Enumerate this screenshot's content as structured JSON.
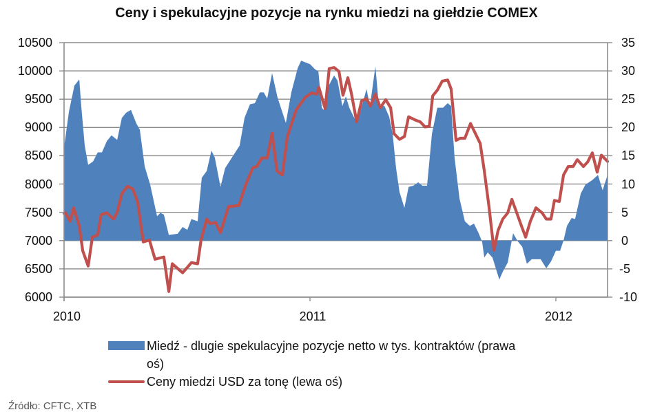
{
  "title": "Ceny i spekulacyjne pozycje na rynku miedzi na giełdzie COMEX",
  "source": "Źródło: CFTC, XTB",
  "legend": [
    {
      "label": "Miedź - dlugie spekulacyjne pozycje netto w tys. kontraktów (prawa oś)",
      "color": "#4F81BD",
      "symbol": "area-swatch"
    },
    {
      "label": "Ceny miedzi USD za tonę (lewa oś)",
      "color": "#C0504D",
      "symbol": "line-swatch"
    }
  ],
  "colors": {
    "area": "#4F81BD",
    "line": "#C0504D",
    "grid": "#8C8C8C",
    "axis": "#8C8C8C"
  },
  "chart_data": {
    "type": "line",
    "title": "Ceny i spekulacyjne pozycje na rynku miedzi na giełdzie COMEX",
    "xlabel": "",
    "ylabel_left": "",
    "ylabel_right": "",
    "x_ticks": [
      "2010",
      "2011",
      "2012"
    ],
    "x_tick_values": [
      2010,
      2011,
      2012
    ],
    "xlim": [
      2010,
      2012.21
    ],
    "y_left": {
      "lim": [
        6000,
        10500
      ],
      "ticks": [
        10500,
        10000,
        9500,
        9000,
        8500,
        8000,
        7500,
        7000,
        6500,
        6000
      ]
    },
    "y_right": {
      "lim": [
        -10,
        35
      ],
      "ticks": [
        35,
        30,
        25,
        20,
        15,
        10,
        5,
        0,
        -5,
        -10
      ]
    },
    "grid": true,
    "legend_position": "bottom",
    "series": [
      {
        "name": "Miedź - dlugie spekulacyjne pozycje netto w tys. kontraktów (prawa oś)",
        "type": "area",
        "axis": "right",
        "color": "#4F81BD",
        "x": [
          2010.0,
          2010.02,
          2010.042,
          2010.062,
          2010.07,
          2010.084,
          2010.098,
          2010.118,
          2010.137,
          2010.154,
          2010.174,
          2010.193,
          2010.216,
          2010.235,
          2010.252,
          2010.272,
          2010.294,
          2010.308,
          2010.328,
          2010.35,
          2010.378,
          2010.392,
          2010.406,
          2010.426,
          2010.462,
          2010.482,
          2010.501,
          2010.518,
          2010.543,
          2010.56,
          2010.58,
          2010.599,
          2010.613,
          2010.636,
          2010.655,
          2010.683,
          2010.714,
          2010.734,
          2010.756,
          2010.776,
          2010.796,
          2010.812,
          2010.826,
          2010.846,
          2010.868,
          2010.902,
          2010.924,
          2010.95,
          2010.964,
          2011.0,
          2011.02,
          2011.034,
          2011.048,
          2011.056,
          2011.07,
          2011.098,
          2011.112,
          2011.132,
          2011.146,
          2011.16,
          2011.188,
          2011.204,
          2011.23,
          2011.244,
          2011.266,
          2011.28,
          2011.303,
          2011.322,
          2011.336,
          2011.35,
          2011.364,
          2011.384,
          2011.401,
          2011.42,
          2011.44,
          2011.457,
          2011.476,
          2011.496,
          2011.518,
          2011.541,
          2011.56,
          2011.574,
          2011.588,
          2011.608,
          2011.63,
          2011.65,
          2011.667,
          2011.686,
          2011.7,
          2011.709,
          2011.723,
          2011.742,
          2011.77,
          2011.784,
          2011.804,
          2011.826,
          2011.846,
          2011.863,
          2011.882,
          2011.902,
          2011.938,
          2011.961,
          2011.98,
          2012.0,
          2012.017,
          2012.031,
          2012.045,
          2012.064,
          2012.078,
          2012.101,
          2012.12,
          2012.148,
          2012.171,
          2012.19,
          2012.21
        ],
        "values": [
          16.5,
          22.8,
          27.4,
          28.5,
          23.7,
          16.8,
          13.4,
          14.0,
          15.6,
          15.6,
          17.6,
          18.6,
          17.8,
          21.7,
          22.6,
          23.1,
          20.7,
          19.6,
          13.1,
          9.9,
          4.3,
          4.9,
          4.6,
          1.0,
          1.2,
          2.4,
          1.9,
          3.8,
          3.4,
          11.1,
          12.3,
          15.9,
          14.7,
          9.5,
          12.8,
          14.7,
          16.8,
          21.7,
          24.1,
          24.3,
          26.2,
          26.2,
          25.1,
          29.6,
          25.3,
          20.8,
          26.2,
          30.5,
          31.8,
          31.2,
          30.3,
          29.9,
          23.5,
          23.1,
          26.9,
          29.2,
          28.3,
          23.8,
          25.5,
          23.5,
          21.0,
          22.6,
          26.8,
          23.8,
          30.8,
          23.8,
          23.8,
          21.9,
          18.9,
          12.8,
          8.6,
          5.8,
          9.5,
          9.7,
          10.3,
          9.7,
          9.7,
          18.9,
          23.5,
          23.5,
          24.3,
          23.8,
          14.7,
          7.4,
          3.4,
          2.6,
          3.0,
          1.3,
          -0.2,
          -3.0,
          -2.1,
          -3.0,
          -6.9,
          -5.5,
          -3.9,
          1.3,
          -0.2,
          -1.1,
          -4.1,
          -3.3,
          -3.3,
          -4.9,
          -3.7,
          -1.8,
          -1.8,
          0.0,
          2.6,
          4.0,
          3.8,
          8.3,
          9.9,
          10.7,
          11.6,
          8.9,
          11.6
        ]
      },
      {
        "name": "Ceny miedzi USD za tonę (lewa oś)",
        "type": "line",
        "axis": "left",
        "color": "#C0504D",
        "x": [
          2010.0,
          2010.006,
          2010.025,
          2010.039,
          2010.062,
          2010.076,
          2010.098,
          2010.115,
          2010.137,
          2010.151,
          2010.174,
          2010.202,
          2010.216,
          2010.235,
          2010.258,
          2010.28,
          2010.3,
          2010.322,
          2010.347,
          2010.37,
          2010.406,
          2010.426,
          2010.44,
          2010.482,
          2010.518,
          2010.543,
          2010.557,
          2010.58,
          2010.594,
          2010.616,
          2010.636,
          2010.669,
          2010.711,
          2010.739,
          2010.768,
          2010.784,
          2010.804,
          2010.826,
          2010.846,
          2010.866,
          2010.888,
          2010.908,
          2010.944,
          2010.98,
          2011.006,
          2011.028,
          2011.036,
          2011.062,
          2011.078,
          2011.098,
          2011.118,
          2011.134,
          2011.154,
          2011.168,
          2011.19,
          2011.21,
          2011.23,
          2011.246,
          2011.266,
          2011.286,
          2011.308,
          2011.328,
          2011.342,
          2011.364,
          2011.384,
          2011.401,
          2011.429,
          2011.448,
          2011.468,
          2011.485,
          2011.499,
          2011.518,
          2011.538,
          2011.56,
          2011.574,
          2011.594,
          2011.611,
          2011.63,
          2011.653,
          2011.672,
          2011.692,
          2011.709,
          2011.728,
          2011.748,
          2011.765,
          2011.784,
          2011.804,
          2011.821,
          2011.84,
          2011.86,
          2011.877,
          2011.896,
          2011.919,
          2011.944,
          2011.961,
          2011.98,
          2011.994,
          2012.014,
          2012.031,
          2012.05,
          2012.07,
          2012.087,
          2012.112,
          2012.129,
          2012.148,
          2012.168,
          2012.185,
          2012.21
        ],
        "values": [
          7480,
          7490,
          7340,
          7580,
          7260,
          6820,
          6550,
          7060,
          7100,
          7460,
          7490,
          7380,
          7500,
          7830,
          7960,
          7910,
          7670,
          6975,
          7010,
          6670,
          6710,
          6100,
          6590,
          6430,
          6610,
          6590,
          7010,
          7380,
          7300,
          7320,
          7140,
          7600,
          7620,
          7990,
          8290,
          8310,
          8460,
          8460,
          8900,
          8230,
          8160,
          8840,
          9310,
          9530,
          9610,
          9590,
          9710,
          9330,
          10040,
          10060,
          9990,
          9570,
          9880,
          9610,
          9100,
          9470,
          9510,
          9380,
          9590,
          9350,
          9490,
          9350,
          8890,
          8790,
          8840,
          9190,
          9130,
          9100,
          9010,
          9020,
          9560,
          9660,
          9820,
          9840,
          9680,
          8770,
          8810,
          8810,
          9070,
          8900,
          8720,
          8230,
          7600,
          6830,
          7180,
          7380,
          7490,
          7730,
          7500,
          7260,
          7060,
          7340,
          7580,
          7490,
          7380,
          7380,
          7710,
          7690,
          8160,
          8310,
          8310,
          8430,
          8310,
          8390,
          8550,
          8210,
          8510,
          8400
        ]
      }
    ]
  }
}
